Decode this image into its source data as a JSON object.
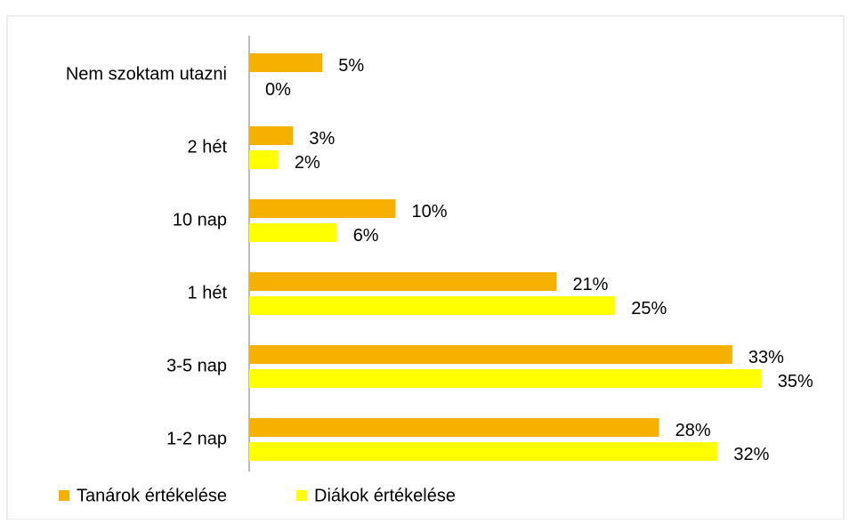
{
  "chart_data": {
    "type": "hbar",
    "categories": [
      "Nem szoktam utazni",
      "2 hét",
      "10 nap",
      "1 hét",
      "3-5 nap",
      "1-2 nap"
    ],
    "series": [
      {
        "name": "Tanárok értékelése",
        "color": "#f5b000",
        "values": [
          5,
          3,
          10,
          21,
          33,
          28
        ],
        "value_labels": [
          "5%",
          "3%",
          "10%",
          "21%",
          "33%",
          "28%"
        ]
      },
      {
        "name": "Diákok értékelése",
        "color": "#ffff00",
        "values": [
          0,
          2,
          6,
          25,
          35,
          32
        ],
        "value_labels": [
          "0%",
          "2%",
          "6%",
          "25%",
          "35%",
          "32%"
        ]
      }
    ],
    "legend": "bottom"
  }
}
